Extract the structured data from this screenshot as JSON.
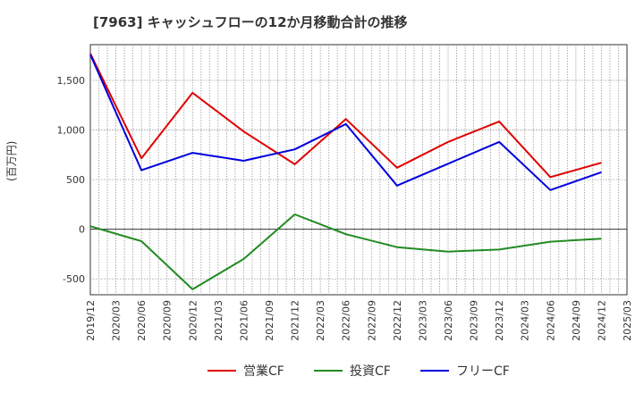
{
  "chart_data": {
    "type": "line",
    "title": "[7963]  キャッシュフローの12か月移動合計の推移",
    "ylabel": "(百万円)",
    "x": [
      "2019/12",
      "2020/03",
      "2020/06",
      "2020/09",
      "2020/12",
      "2021/03",
      "2021/06",
      "2021/09",
      "2021/12",
      "2022/03",
      "2022/06",
      "2022/09",
      "2022/12",
      "2023/03",
      "2023/06",
      "2023/09",
      "2023/12",
      "2024/03",
      "2024/06",
      "2024/09",
      "2024/12",
      "2025/03"
    ],
    "ylim": [
      -660,
      1860
    ],
    "yticks": [
      -500,
      0,
      500,
      1000,
      1500
    ],
    "ytick_labels": [
      "-500",
      "0",
      "500",
      "1,000",
      "1,500"
    ],
    "grid": true,
    "legend_position": "bottom",
    "series": [
      {
        "name": "営業CF",
        "color": "#e00000",
        "points": [
          [
            "2019/12",
            1770
          ],
          [
            "2020/06",
            715
          ],
          [
            "2020/12",
            1375
          ],
          [
            "2021/06",
            985
          ],
          [
            "2021/12",
            655
          ],
          [
            "2022/06",
            1110
          ],
          [
            "2022/12",
            620
          ],
          [
            "2023/06",
            880
          ],
          [
            "2023/12",
            1085
          ],
          [
            "2024/06",
            525
          ],
          [
            "2024/12",
            670
          ]
        ]
      },
      {
        "name": "投資CF",
        "color": "#228b22",
        "points": [
          [
            "2019/12",
            30
          ],
          [
            "2020/06",
            -120
          ],
          [
            "2020/12",
            -605
          ],
          [
            "2021/06",
            -300
          ],
          [
            "2021/12",
            150
          ],
          [
            "2022/06",
            -50
          ],
          [
            "2022/12",
            -180
          ],
          [
            "2023/06",
            -225
          ],
          [
            "2023/12",
            -205
          ],
          [
            "2024/06",
            -125
          ],
          [
            "2024/12",
            -95
          ]
        ]
      },
      {
        "name": "フリーCF",
        "color": "#0000dd",
        "points": [
          [
            "2019/12",
            1760
          ],
          [
            "2020/06",
            595
          ],
          [
            "2020/12",
            770
          ],
          [
            "2021/06",
            690
          ],
          [
            "2021/12",
            805
          ],
          [
            "2022/06",
            1060
          ],
          [
            "2022/12",
            440
          ],
          [
            "2023/06",
            660
          ],
          [
            "2023/12",
            880
          ],
          [
            "2024/06",
            395
          ],
          [
            "2024/12",
            575
          ]
        ]
      }
    ]
  }
}
